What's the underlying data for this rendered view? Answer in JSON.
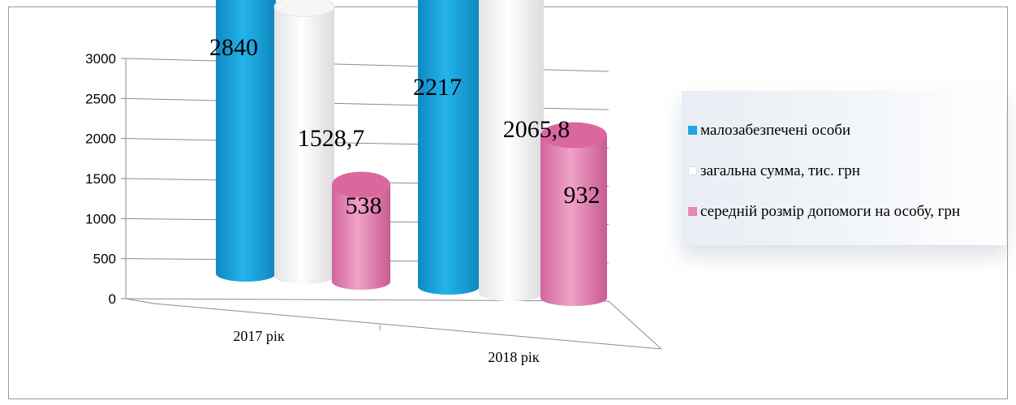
{
  "chart_data": {
    "type": "bar",
    "title": "",
    "xlabel": "",
    "ylabel": "",
    "ylim": [
      0,
      3000
    ],
    "yticks": [
      0,
      500,
      1000,
      1500,
      2000,
      2500,
      3000
    ],
    "ytick_labels": [
      "0",
      "500",
      "1000",
      "1500",
      "2000",
      "2500",
      "3000"
    ],
    "categories": [
      "2017 рік",
      "2018 рік"
    ],
    "grid": true,
    "legend_position": "right",
    "style": "3d-cylinder",
    "series": [
      {
        "name": "малозабезпечені особи",
        "values": [
          2840,
          2217
        ],
        "value_labels": [
          "2840",
          "2217"
        ],
        "color": "#1fa6dc"
      },
      {
        "name": "загальна сумма, тис. грн",
        "values": [
          1528.7,
          2065.8
        ],
        "value_labels": [
          "1528,7",
          "2065,8"
        ],
        "color": "#f2f2f2"
      },
      {
        "name": "середній розмір допомоги на особу,  грн",
        "values": [
          538,
          932
        ],
        "value_labels": [
          "538",
          "932"
        ],
        "color": "#e987b8"
      }
    ]
  }
}
